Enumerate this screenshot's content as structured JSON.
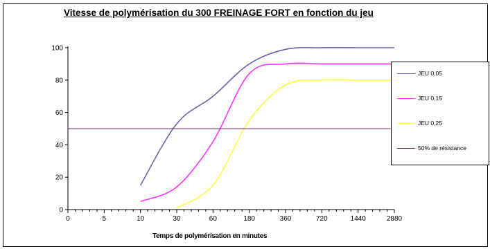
{
  "chart_data": {
    "type": "line",
    "title": "Vitesse de polymérisation du 300 FREINAGE  FORT en fonction du jeu",
    "xlabel": "Temps de polymérisation en minutes",
    "ylabel": "",
    "categories": [
      "0",
      "5",
      "10",
      "30",
      "60",
      "180",
      "360",
      "720",
      "1440",
      "2880"
    ],
    "ylim": [
      0,
      100
    ],
    "yticks": [
      0,
      20,
      40,
      60,
      80,
      100
    ],
    "grid": false,
    "legend_position": "right",
    "series": [
      {
        "name": "JEU 0,05",
        "color": "#6666aa",
        "points": [
          [
            10,
            15
          ],
          [
            30,
            53
          ],
          [
            60,
            70
          ],
          [
            180,
            90
          ],
          [
            360,
            99
          ],
          [
            720,
            100
          ],
          [
            1440,
            100
          ],
          [
            2880,
            100
          ]
        ]
      },
      {
        "name": "JEU 0,15",
        "color": "#ff33ff",
        "points": [
          [
            10,
            5
          ],
          [
            30,
            14
          ],
          [
            60,
            42
          ],
          [
            180,
            84
          ],
          [
            360,
            90
          ],
          [
            720,
            90
          ],
          [
            1440,
            90
          ],
          [
            2880,
            90
          ]
        ]
      },
      {
        "name": "JEU 0,25",
        "color": "#ffff44",
        "points": [
          [
            30,
            1
          ],
          [
            60,
            15
          ],
          [
            180,
            55
          ],
          [
            360,
            77
          ],
          [
            720,
            80
          ],
          [
            1440,
            80
          ],
          [
            2880,
            80
          ]
        ]
      },
      {
        "name": "50% de résistance",
        "color": "#7a2a7a",
        "points": [
          [
            0,
            50
          ],
          [
            2880,
            50
          ]
        ]
      }
    ]
  }
}
